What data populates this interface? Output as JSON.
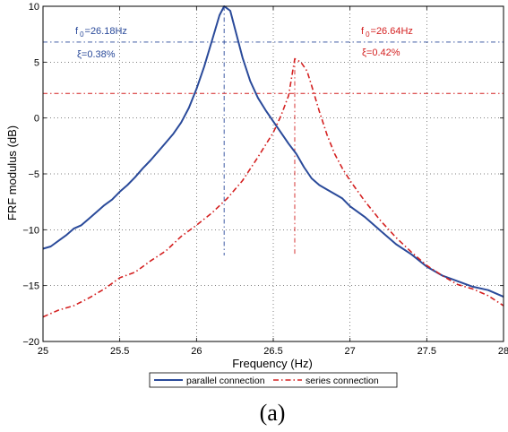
{
  "chart_data": {
    "type": "line",
    "xlabel": "Frequency (Hz)",
    "ylabel": "FRF modulus (dB)",
    "xlim": [
      25,
      28
    ],
    "ylim": [
      -20,
      10
    ],
    "xticks": [
      "25",
      "25.5",
      "26",
      "26.5",
      "27",
      "27.5",
      "28"
    ],
    "yticks": [
      "−20",
      "−15",
      "−10",
      "−5",
      "0",
      "5",
      "10"
    ],
    "grid": true,
    "legend_position": "bottom-outside",
    "series": [
      {
        "name": "parallel connection",
        "color": "#2a4a9a",
        "style": "solid",
        "x": [
          25.0,
          25.05,
          25.1,
          25.15,
          25.2,
          25.25,
          25.3,
          25.35,
          25.4,
          25.45,
          25.5,
          25.55,
          25.6,
          25.65,
          25.7,
          25.75,
          25.8,
          25.85,
          25.9,
          25.95,
          26.0,
          26.05,
          26.1,
          26.15,
          26.18,
          26.22,
          26.25,
          26.3,
          26.35,
          26.4,
          26.45,
          26.5,
          26.55,
          26.6,
          26.65,
          26.7,
          26.75,
          26.8,
          26.85,
          26.9,
          26.95,
          27.0,
          27.1,
          27.2,
          27.3,
          27.4,
          27.5,
          27.6,
          27.7,
          27.8,
          27.9,
          28.0
        ],
        "y": [
          -11.7,
          -11.5,
          -11.0,
          -10.5,
          -9.9,
          -9.6,
          -9.0,
          -8.4,
          -7.8,
          -7.3,
          -6.6,
          -6.0,
          -5.3,
          -4.5,
          -3.8,
          -3.0,
          -2.2,
          -1.4,
          -0.4,
          0.9,
          2.6,
          4.6,
          6.9,
          9.2,
          10.0,
          9.6,
          8.0,
          5.4,
          3.3,
          1.8,
          0.7,
          -0.3,
          -1.3,
          -2.3,
          -3.2,
          -4.4,
          -5.4,
          -6.0,
          -6.4,
          -6.8,
          -7.2,
          -7.9,
          -8.9,
          -10.1,
          -11.3,
          -12.2,
          -13.3,
          -14.1,
          -14.6,
          -15.1,
          -15.4,
          -16.0
        ]
      },
      {
        "name": "series connection",
        "color": "#d42020",
        "style": "dashdot",
        "x": [
          25.0,
          25.1,
          25.2,
          25.3,
          25.4,
          25.5,
          25.6,
          25.7,
          25.8,
          25.9,
          26.0,
          26.1,
          26.2,
          26.3,
          26.4,
          26.5,
          26.55,
          26.6,
          26.64,
          26.68,
          26.72,
          26.75,
          26.8,
          26.85,
          26.9,
          26.95,
          27.0,
          27.1,
          27.2,
          27.3,
          27.4,
          27.5,
          27.6,
          27.7,
          27.8,
          27.9,
          28.0
        ],
        "y": [
          -17.8,
          -17.2,
          -16.8,
          -16.1,
          -15.3,
          -14.3,
          -13.8,
          -12.8,
          -11.9,
          -10.6,
          -9.6,
          -8.5,
          -7.2,
          -5.6,
          -3.5,
          -1.3,
          0.2,
          2.0,
          5.3,
          5.0,
          4.2,
          2.9,
          0.6,
          -1.5,
          -3.2,
          -4.5,
          -5.6,
          -7.5,
          -9.2,
          -10.7,
          -12.0,
          -13.2,
          -14.1,
          -14.9,
          -15.3,
          -15.9,
          -16.8
        ]
      }
    ],
    "reference_lines": [
      {
        "series": 0,
        "type": "horizontal",
        "y": 6.8
      },
      {
        "series": 0,
        "type": "vertical",
        "x": 26.18
      },
      {
        "series": 1,
        "type": "horizontal",
        "y": 2.2
      },
      {
        "series": 1,
        "type": "vertical",
        "x": 26.64
      }
    ],
    "annotations": [
      {
        "series": 0,
        "f_symbol": "f",
        "f_sub": "0",
        "f_value": "=26.18Hz",
        "damping": "ξ=0.38%"
      },
      {
        "series": 1,
        "f_symbol": "f",
        "f_sub": "0",
        "f_value": "=26.64Hz",
        "damping": "ξ=0.42%"
      }
    ]
  },
  "caption": "(a)"
}
